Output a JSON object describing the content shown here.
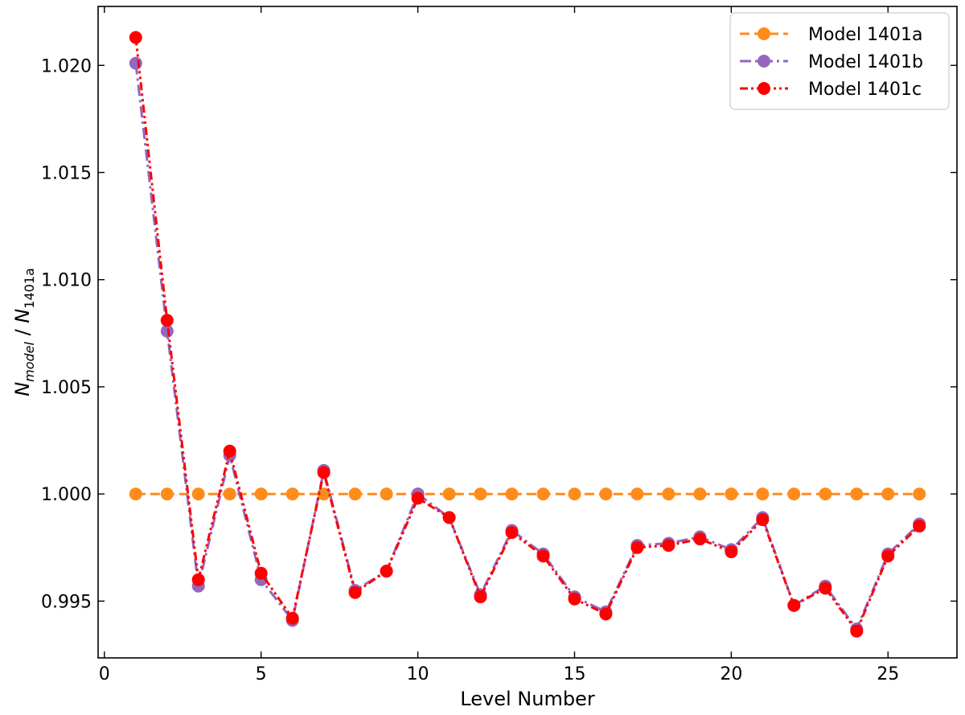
{
  "chart_data": {
    "type": "line",
    "xlabel": "Level Number",
    "ylabel": {
      "main": "N",
      "sub1": "model",
      "sep": " / ",
      "main2": "N",
      "sub2": "1401a"
    },
    "xlim": [
      -0.2,
      27.2
    ],
    "ylim": [
      0.99235,
      1.02275
    ],
    "xticks": [
      0,
      5,
      10,
      15,
      20,
      25
    ],
    "yticks": [
      0.995,
      1.0,
      1.005,
      1.01,
      1.015,
      1.02
    ],
    "ytick_labels": [
      "0.995",
      "1.000",
      "1.005",
      "1.010",
      "1.015",
      "1.020"
    ],
    "xtick_labels": [
      "0",
      "5",
      "10",
      "15",
      "20",
      "25"
    ],
    "legend_position": "top-right",
    "x": [
      1,
      2,
      3,
      4,
      5,
      6,
      7,
      8,
      9,
      10,
      11,
      12,
      13,
      14,
      15,
      16,
      17,
      18,
      19,
      20,
      21,
      22,
      23,
      24,
      25,
      26
    ],
    "series": [
      {
        "name": "Model 1401a",
        "color": "#ff8c1a",
        "dash": "dashed",
        "values": [
          1.0,
          1.0,
          1.0,
          1.0,
          1.0,
          1.0,
          1.0,
          1.0,
          1.0,
          1.0,
          1.0,
          1.0,
          1.0,
          1.0,
          1.0,
          1.0,
          1.0,
          1.0,
          1.0,
          1.0,
          1.0,
          1.0,
          1.0,
          1.0,
          1.0,
          1.0
        ]
      },
      {
        "name": "Model 1401b",
        "color": "#9467bd",
        "dash": "dashdot",
        "values": [
          1.0201,
          1.0076,
          0.9957,
          1.0018,
          0.996,
          0.9941,
          1.0011,
          0.9955,
          0.9964,
          1.0,
          0.9989,
          0.9953,
          0.9983,
          0.9972,
          0.9952,
          0.9945,
          0.9976,
          0.9977,
          0.998,
          0.9974,
          0.9989,
          0.9948,
          0.9957,
          0.9937,
          0.9972,
          0.9986
        ]
      },
      {
        "name": "Model 1401c",
        "color": "#ff0000",
        "dash": "dashdotdot",
        "values": [
          1.0213,
          1.0081,
          0.996,
          1.002,
          0.9963,
          0.9942,
          1.001,
          0.9954,
          0.9964,
          0.9998,
          0.9989,
          0.9952,
          0.9982,
          0.9971,
          0.9951,
          0.9944,
          0.9975,
          0.9976,
          0.9979,
          0.9973,
          0.9988,
          0.9948,
          0.9956,
          0.9936,
          0.9971,
          0.9985
        ]
      }
    ]
  }
}
